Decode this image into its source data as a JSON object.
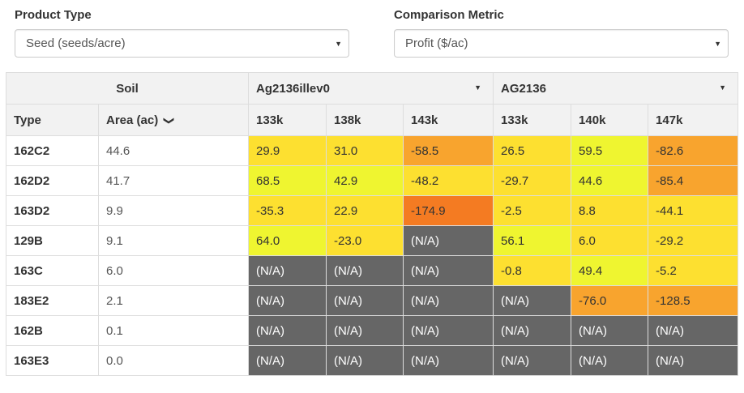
{
  "controls": {
    "product_type": {
      "label": "Product Type",
      "value": "Seed (seeds/acre)"
    },
    "comparison_metric": {
      "label": "Comparison Metric",
      "value": "Profit ($/ac)"
    }
  },
  "table": {
    "soil_header": "Soil",
    "groups": [
      {
        "name": "Ag2136illev0",
        "caret": "▼"
      },
      {
        "name": "AG2136",
        "caret": "▼"
      }
    ],
    "columns": {
      "type": "Type",
      "area": "Area (ac)",
      "area_sort": "⌄",
      "rates": [
        "133k",
        "138k",
        "143k",
        "133k",
        "140k",
        "147k"
      ]
    },
    "rows": [
      {
        "type": "162C2",
        "area": "44.6",
        "values": [
          "29.9",
          "31.0",
          "-58.5",
          "26.5",
          "59.5",
          "-82.6"
        ]
      },
      {
        "type": "162D2",
        "area": "41.7",
        "values": [
          "68.5",
          "42.9",
          "-48.2",
          "-29.7",
          "44.6",
          "-85.4"
        ]
      },
      {
        "type": "163D2",
        "area": "9.9",
        "values": [
          "-35.3",
          "22.9",
          "-174.9",
          "-2.5",
          "8.8",
          "-44.1"
        ]
      },
      {
        "type": "129B",
        "area": "9.1",
        "values": [
          "64.0",
          "-23.0",
          "(N/A)",
          "56.1",
          "6.0",
          "-29.2"
        ]
      },
      {
        "type": "163C",
        "area": "6.0",
        "values": [
          "(N/A)",
          "(N/A)",
          "(N/A)",
          "-0.8",
          "49.4",
          "-5.2"
        ]
      },
      {
        "type": "183E2",
        "area": "2.1",
        "values": [
          "(N/A)",
          "(N/A)",
          "(N/A)",
          "(N/A)",
          "-76.0",
          "-128.5"
        ]
      },
      {
        "type": "162B",
        "area": "0.1",
        "values": [
          "(N/A)",
          "(N/A)",
          "(N/A)",
          "(N/A)",
          "(N/A)",
          "(N/A)"
        ]
      },
      {
        "type": "163E3",
        "area": "0.0",
        "values": [
          "(N/A)",
          "(N/A)",
          "(N/A)",
          "(N/A)",
          "(N/A)",
          "(N/A)"
        ]
      }
    ],
    "colors": {
      "na": "#666666",
      "scale_low": "#f47b22",
      "scale_mid_low": "#f8a42e",
      "scale_mid": "#fde030",
      "scale_high": "#eff530"
    }
  }
}
